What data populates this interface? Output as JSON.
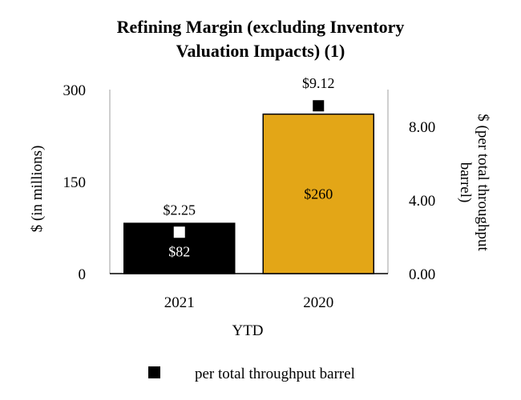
{
  "chart_data": {
    "type": "bar",
    "title_lines": [
      "Refining Margin (excluding Inventory",
      "Valuation Impacts) (1)"
    ],
    "xlabel": "YTD",
    "ylabel": "$ (in millions)",
    "y2label_lines": [
      "$ (per total throughput",
      "barrel)"
    ],
    "categories": [
      "2021",
      "2020"
    ],
    "ylim": [
      0,
      300
    ],
    "yticks": [
      "0",
      "150",
      "300"
    ],
    "y2lim": [
      0,
      10
    ],
    "y2ticks": [
      "0.00",
      "4.00",
      "8.00"
    ],
    "series": [
      {
        "kind": "bar",
        "values": [
          82,
          260
        ],
        "labels": [
          "$82",
          "$260"
        ],
        "colors": [
          "#000000",
          "#E3A617"
        ],
        "label_colors": [
          "#ffffff",
          "#000000"
        ]
      },
      {
        "name": "per total throughput barrel",
        "kind": "marker",
        "axis": "secondary",
        "values": [
          2.25,
          9.12
        ],
        "labels": [
          "$2.25",
          "$9.12"
        ],
        "colors": [
          "#ffffff",
          "#000000"
        ]
      }
    ],
    "grid": false,
    "legend_position": "bottom"
  }
}
